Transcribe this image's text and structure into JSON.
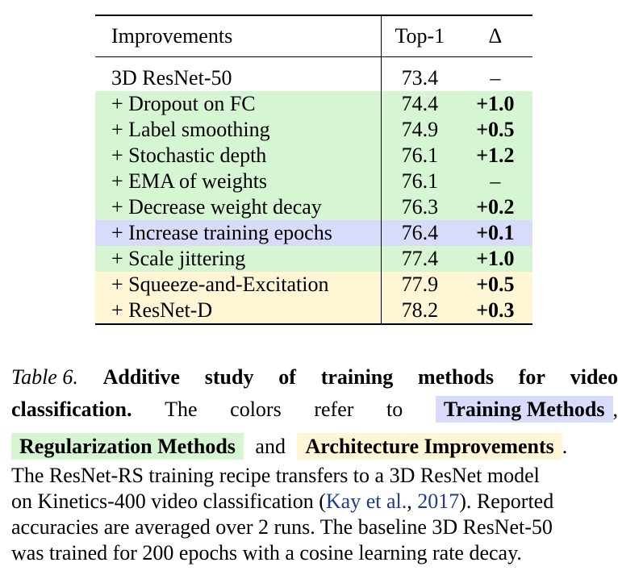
{
  "table": {
    "headers": [
      "Improvements",
      "Top-1",
      "Δ"
    ],
    "rows": [
      {
        "label": "3D ResNet-50",
        "top1": "73.4",
        "delta": "–",
        "category": "baseline"
      },
      {
        "label": "+ Dropout on FC",
        "top1": "74.4",
        "delta": "+1.0",
        "category": "regularization"
      },
      {
        "label": "+ Label smoothing",
        "top1": "74.9",
        "delta": "+0.5",
        "category": "regularization"
      },
      {
        "label": "+ Stochastic depth",
        "top1": "76.1",
        "delta": "+1.2",
        "category": "regularization"
      },
      {
        "label": "+ EMA of weights",
        "top1": "76.1",
        "delta": "–",
        "category": "regularization"
      },
      {
        "label": "+ Decrease weight decay",
        "top1": "76.3",
        "delta": "+0.2",
        "category": "regularization"
      },
      {
        "label": "+ Increase training epochs",
        "top1": "76.4",
        "delta": "+0.1",
        "category": "training"
      },
      {
        "label": "+ Scale jittering",
        "top1": "77.4",
        "delta": "+1.0",
        "category": "regularization"
      },
      {
        "label": "+ Squeeze-and-Excitation",
        "top1": "77.9",
        "delta": "+0.5",
        "category": "architecture"
      },
      {
        "label": "+ ResNet-D",
        "top1": "78.2",
        "delta": "+0.3",
        "category": "architecture"
      }
    ]
  },
  "colors": {
    "baseline": "#ffffff",
    "regularization": "#d5f5d3",
    "training": "#d9dbfa",
    "architecture": "#fff6d6",
    "citation": "#1f3b8f"
  },
  "caption": {
    "label": "Table 6.",
    "title_part1": "Additive study of training methods for video",
    "title_part2": "classification.",
    "colors_intro": "The colors refer to",
    "legend_training": "Training Methods",
    "comma": ",",
    "legend_regularization": "Regularization Methods",
    "and": "and",
    "legend_architecture": "Architecture Improvements",
    "period": ".",
    "line4": "The ResNet-RS training recipe transfers to a 3D ResNet model",
    "line5_pre": "on Kinetics-400 video classification (",
    "cite_authors": "Kay et al.",
    "cite_sep": ", ",
    "cite_year": "2017",
    "line5_post": "). Reported",
    "line6": "accuracies are averaged over 2 runs. The baseline 3D ResNet-50",
    "line7": "was trained for 200 epochs with a cosine learning rate decay."
  }
}
